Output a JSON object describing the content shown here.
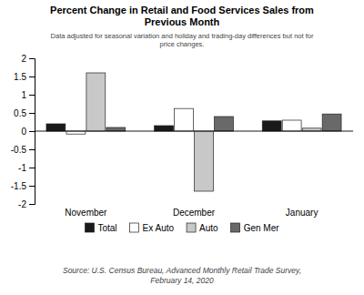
{
  "chart_data": {
    "type": "bar",
    "title": "Percent Change in Retail and Food Services Sales from\nPrevious Month",
    "subtitle": "Data adjusted for seasonal variation and holiday and trading-day differences but not for\nprice changes.",
    "annotations": [
      "Source: U.S. Census Bureau, Advanced Monthly Retail Trade Survey,\nFebruary 14, 2020"
    ],
    "categories": [
      "November",
      "December",
      "January"
    ],
    "series": [
      {
        "name": "Total",
        "color": "#1a1a1a",
        "values": [
          0.2,
          0.15,
          0.28
        ]
      },
      {
        "name": "Ex Auto",
        "color": "#ffffff",
        "values": [
          -0.08,
          0.62,
          0.3
        ]
      },
      {
        "name": "Auto",
        "color": "#c8c8c8",
        "values": [
          1.6,
          -1.65,
          0.08
        ]
      },
      {
        "name": "Gen Mer",
        "color": "#696969",
        "values": [
          0.1,
          0.4,
          0.47
        ]
      }
    ],
    "ylim": [
      -2,
      2
    ],
    "yticks": [
      -2,
      -1.5,
      -1,
      -0.5,
      0,
      0.5,
      1,
      1.5,
      2
    ],
    "grid": false,
    "legend": "bottom"
  }
}
